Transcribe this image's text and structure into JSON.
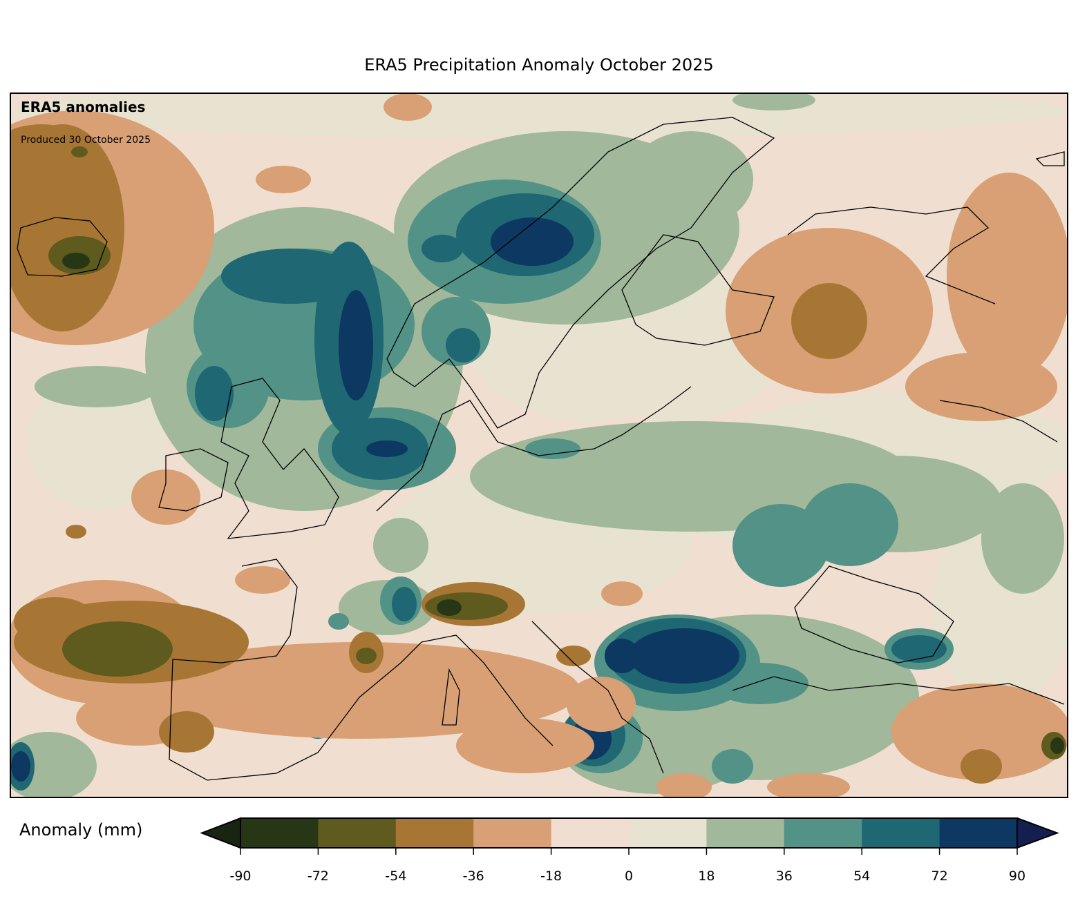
{
  "title": "ERA5 Precipitation Anomaly October 2025",
  "annotation": {
    "heading": "ERA5 anomalies",
    "produced": "Produced 30 October 2025"
  },
  "colorbar": {
    "label": "Anomaly (mm)",
    "ticks": [
      "-90",
      "-72",
      "-54",
      "-36",
      "-18",
      "0",
      "18",
      "36",
      "54",
      "72",
      "90"
    ],
    "colors": [
      "#273614",
      "#5f5b1e",
      "#a87634",
      "#d8a074",
      "#f0dfd1",
      "#e8e3d1",
      "#a1b89b",
      "#529287",
      "#1e6773",
      "#0c3862"
    ],
    "extend_low_color": "#1a2412",
    "extend_high_color": "#141f4f"
  }
}
